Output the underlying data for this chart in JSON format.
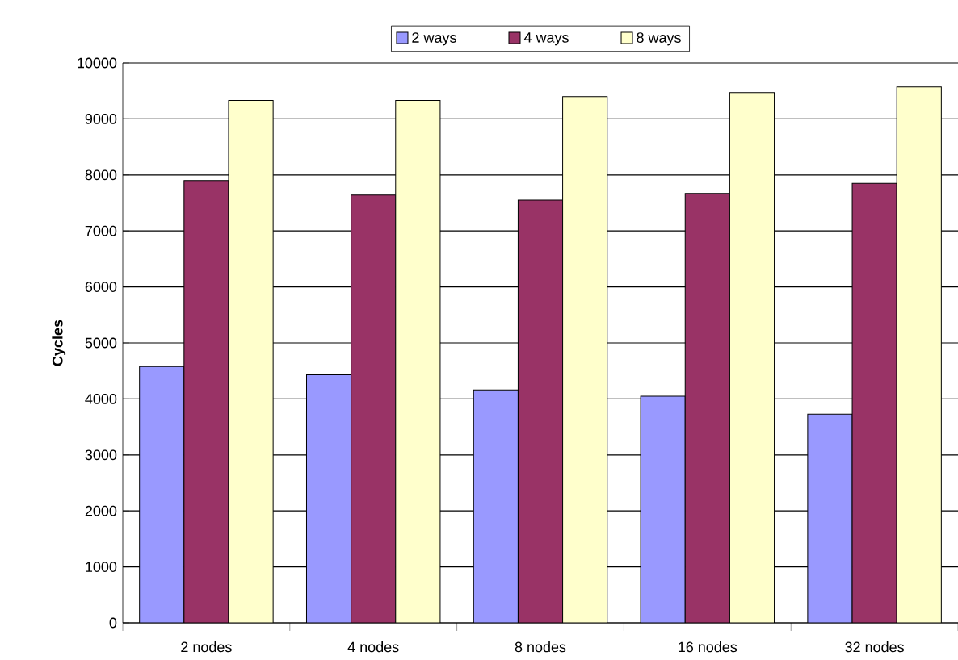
{
  "chart_data": {
    "type": "bar",
    "ylabel": "Cycles",
    "categories": [
      "2 nodes",
      "4 nodes",
      "8 nodes",
      "16 nodes",
      "32 nodes"
    ],
    "series": [
      {
        "name": "2 ways",
        "color": "#9999ff",
        "values": [
          4580,
          4430,
          4160,
          4050,
          3730
        ]
      },
      {
        "name": "4 ways",
        "color": "#993366",
        "values": [
          7900,
          7640,
          7550,
          7670,
          7850
        ]
      },
      {
        "name": "8 ways",
        "color": "#ffffcc",
        "values": [
          9330,
          9330,
          9400,
          9470,
          9570
        ]
      }
    ],
    "ylim": [
      0,
      10000
    ],
    "yticks": [
      0,
      1000,
      2000,
      3000,
      4000,
      5000,
      6000,
      7000,
      8000,
      9000,
      10000
    ],
    "grid": "y",
    "legend": "top"
  }
}
